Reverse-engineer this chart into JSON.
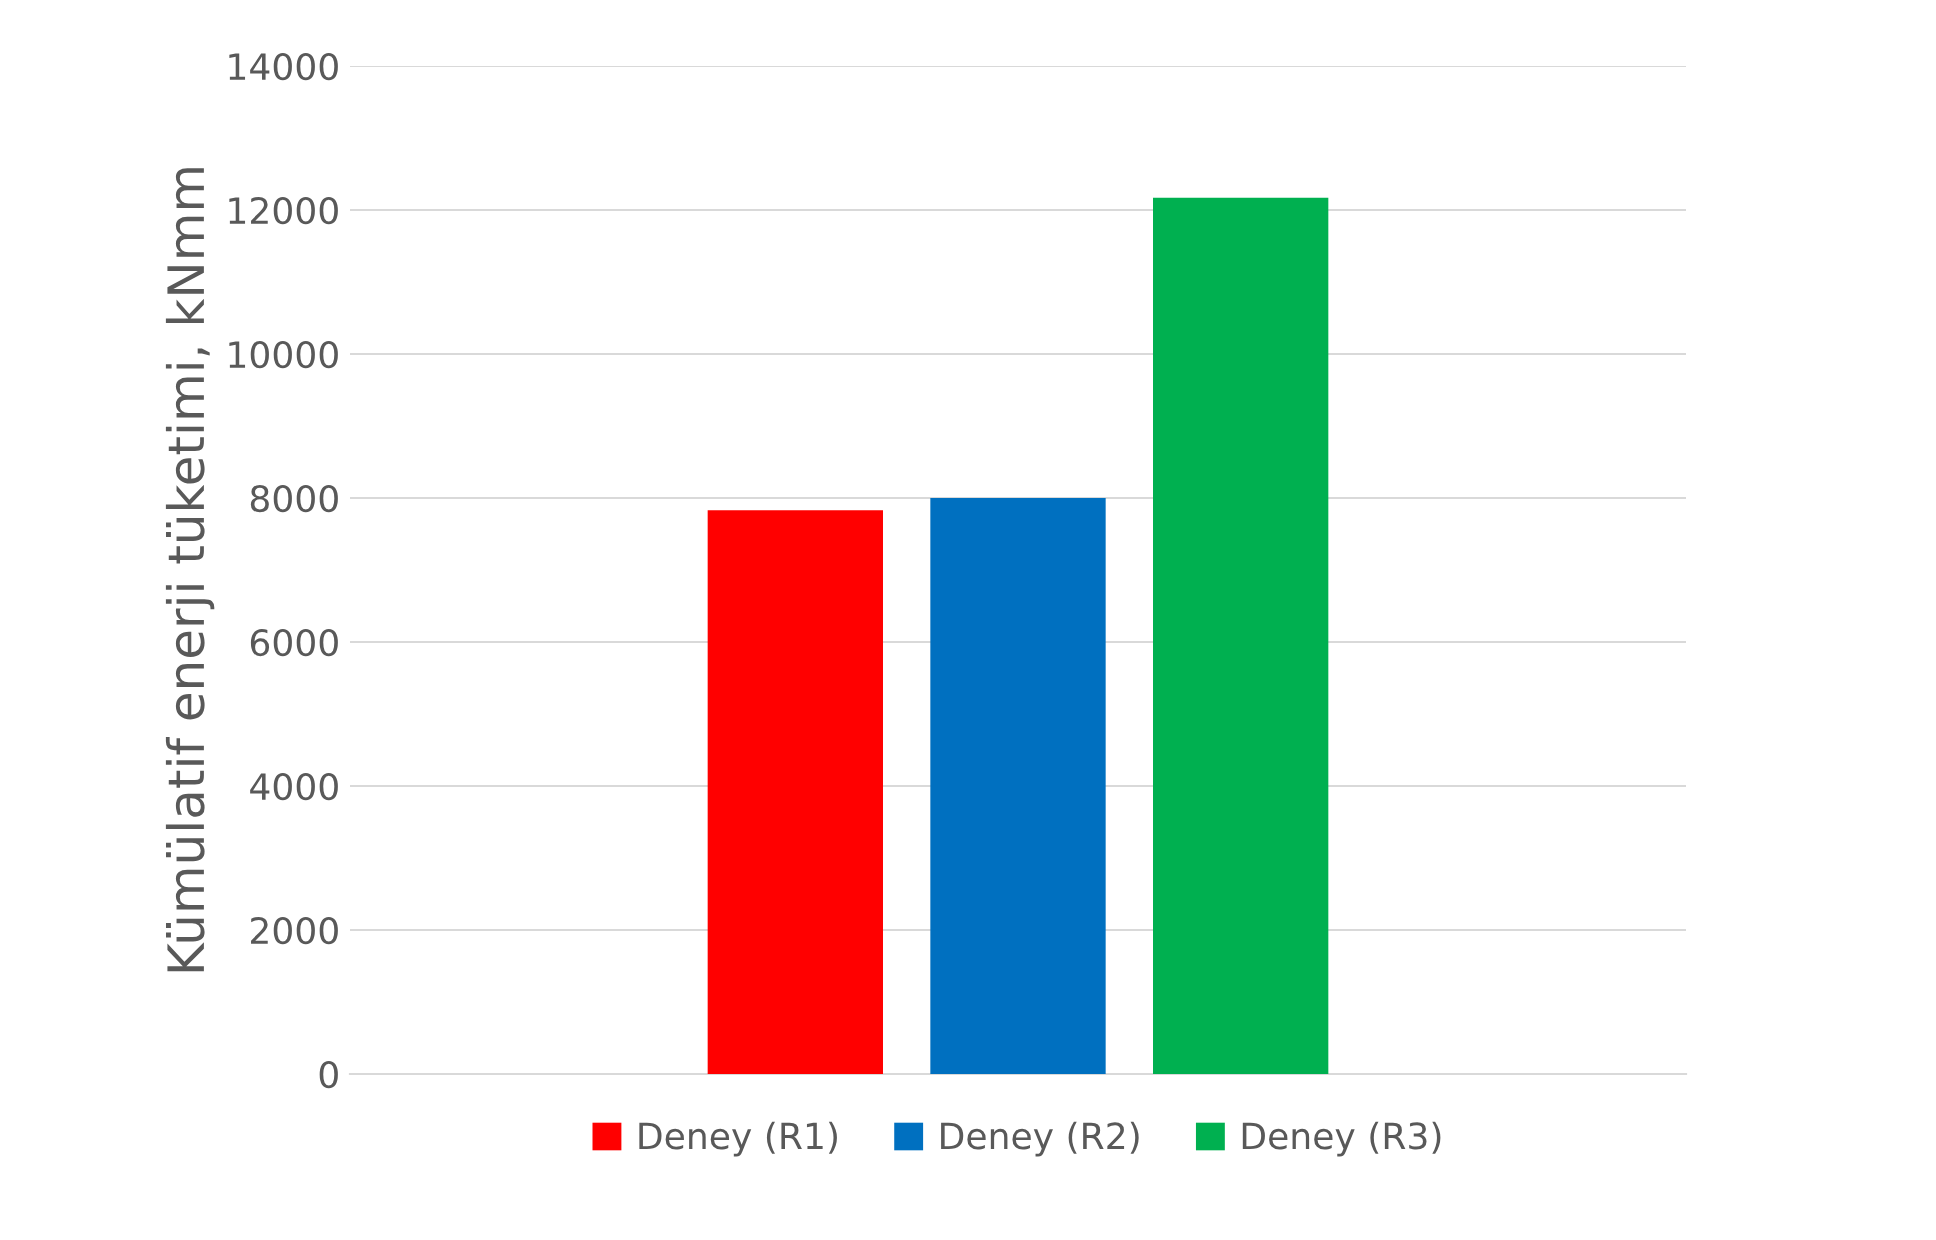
{
  "chart_data": {
    "type": "bar",
    "ylabel": "Kümülatif enerji tüketimi, kNmm",
    "categories": [
      null
    ],
    "series": [
      {
        "name": "Deney (R1)",
        "color": "#ff0000",
        "values": [
          7830
        ]
      },
      {
        "name": "Deney (R2)",
        "color": "#0070c0",
        "values": [
          8000
        ]
      },
      {
        "name": "Deney (R3)",
        "color": "#00b050",
        "values": [
          12170
        ]
      }
    ],
    "ylim": [
      0,
      14000
    ],
    "yticks": [
      0,
      2000,
      4000,
      6000,
      8000,
      10000,
      12000,
      14000
    ],
    "grid": "y",
    "legend": "bottom"
  }
}
